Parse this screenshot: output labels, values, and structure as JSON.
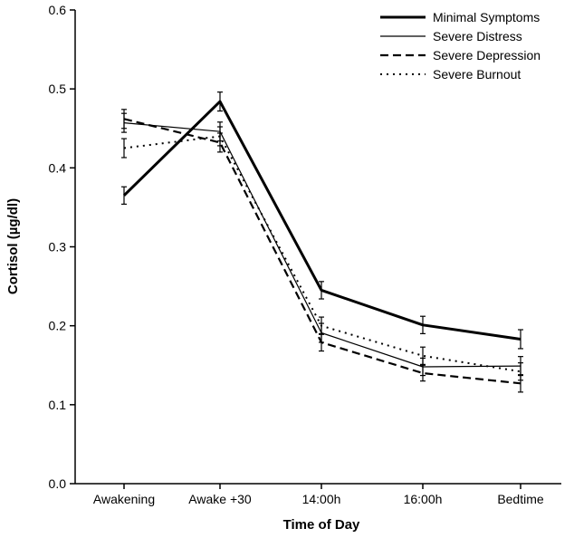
{
  "chart_data": {
    "type": "line",
    "title": "",
    "xlabel": "Time of Day",
    "ylabel": "Cortisol (µg/dl)",
    "ylim": [
      0,
      0.6
    ],
    "yticks": [
      "0.0",
      "0.1",
      "0.2",
      "0.3",
      "0.4",
      "0.5",
      "0.6"
    ],
    "categories": [
      "Awakening",
      "Awake +30",
      "14:00h",
      "16:00h",
      "Bedtime"
    ],
    "legend_position": "top-right",
    "series": [
      {
        "name": "Minimal Symptoms",
        "style": "thick-solid",
        "values": [
          0.365,
          0.484,
          0.245,
          0.201,
          0.183
        ],
        "errors": [
          0.011,
          0.012,
          0.011,
          0.011,
          0.012
        ]
      },
      {
        "name": "Severe Distress",
        "style": "thin-solid",
        "values": [
          0.457,
          0.446,
          0.191,
          0.148,
          0.149
        ],
        "errors": [
          0.012,
          0.012,
          0.012,
          0.011,
          0.012
        ]
      },
      {
        "name": "Severe Depression",
        "style": "dashed",
        "values": [
          0.462,
          0.432,
          0.179,
          0.14,
          0.127
        ],
        "errors": [
          0.012,
          0.012,
          0.011,
          0.01,
          0.011
        ]
      },
      {
        "name": "Severe Burnout",
        "style": "dotted",
        "values": [
          0.425,
          0.44,
          0.2,
          0.162,
          0.142
        ],
        "errors": [
          0.012,
          0.012,
          0.011,
          0.011,
          0.011
        ]
      }
    ]
  }
}
